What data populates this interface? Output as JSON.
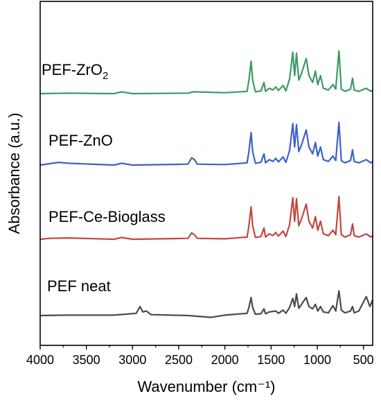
{
  "chart_data": {
    "type": "line",
    "xlabel": "Wavenumber (cm⁻¹)",
    "ylabel": "Absorbance (a.u.)",
    "xlim": [
      4000,
      400
    ],
    "x_reversed": true,
    "x_ticks": [
      "4000",
      "3500",
      "3000",
      "2500",
      "2000",
      "1500",
      "1000",
      "500"
    ],
    "y_ticks_shown": false,
    "grid": false,
    "series": [
      {
        "name": "PEF-ZrO2",
        "label_main": "PEF-ZrO",
        "label_sub": "2",
        "color": "#3a9a63",
        "offset": 3,
        "points": [
          [
            4000,
            0.0
          ],
          [
            3700,
            0.01
          ],
          [
            3200,
            0.0
          ],
          [
            3120,
            0.04
          ],
          [
            3000,
            0.0
          ],
          [
            2400,
            0.01
          ],
          [
            2340,
            0.04
          ],
          [
            2000,
            0.02
          ],
          [
            1760,
            0.05
          ],
          [
            1740,
            0.3
          ],
          [
            1716,
            0.72
          ],
          [
            1700,
            0.3
          ],
          [
            1670,
            0.04
          ],
          [
            1610,
            0.06
          ],
          [
            1577,
            0.25
          ],
          [
            1560,
            0.05
          ],
          [
            1520,
            0.12
          ],
          [
            1480,
            0.08
          ],
          [
            1450,
            0.15
          ],
          [
            1420,
            0.07
          ],
          [
            1370,
            0.18
          ],
          [
            1340,
            0.06
          ],
          [
            1300,
            0.32
          ],
          [
            1265,
            0.92
          ],
          [
            1245,
            0.4
          ],
          [
            1225,
            0.9
          ],
          [
            1200,
            0.3
          ],
          [
            1170,
            0.45
          ],
          [
            1120,
            0.78
          ],
          [
            1090,
            0.4
          ],
          [
            1050,
            0.25
          ],
          [
            1020,
            0.5
          ],
          [
            995,
            0.2
          ],
          [
            965,
            0.4
          ],
          [
            935,
            0.12
          ],
          [
            880,
            0.08
          ],
          [
            830,
            0.2
          ],
          [
            800,
            0.1
          ],
          [
            765,
            0.95
          ],
          [
            740,
            0.1
          ],
          [
            700,
            0.05
          ],
          [
            640,
            0.1
          ],
          [
            618,
            0.34
          ],
          [
            600,
            0.08
          ],
          [
            550,
            0.05
          ],
          [
            470,
            0.12
          ],
          [
            420,
            0.05
          ],
          [
            400,
            0.08
          ]
        ]
      },
      {
        "name": "PEF-ZnO",
        "label_main": "PEF-ZnO",
        "label_sub": "",
        "color": "#3b5fcd",
        "offset": 2,
        "points": [
          [
            4000,
            0.0
          ],
          [
            3900,
            0.03
          ],
          [
            3800,
            0.06
          ],
          [
            3700,
            0.04
          ],
          [
            3200,
            0.0
          ],
          [
            3120,
            0.04
          ],
          [
            3000,
            0.0
          ],
          [
            2400,
            0.02
          ],
          [
            2360,
            0.16
          ],
          [
            2330,
            0.12
          ],
          [
            2300,
            0.02
          ],
          [
            2000,
            0.01
          ],
          [
            1760,
            0.05
          ],
          [
            1740,
            0.3
          ],
          [
            1716,
            0.72
          ],
          [
            1700,
            0.3
          ],
          [
            1670,
            0.04
          ],
          [
            1610,
            0.06
          ],
          [
            1577,
            0.25
          ],
          [
            1560,
            0.05
          ],
          [
            1520,
            0.12
          ],
          [
            1480,
            0.08
          ],
          [
            1450,
            0.15
          ],
          [
            1420,
            0.07
          ],
          [
            1370,
            0.18
          ],
          [
            1340,
            0.06
          ],
          [
            1300,
            0.32
          ],
          [
            1265,
            0.92
          ],
          [
            1245,
            0.4
          ],
          [
            1225,
            0.9
          ],
          [
            1200,
            0.3
          ],
          [
            1170,
            0.45
          ],
          [
            1120,
            0.78
          ],
          [
            1090,
            0.4
          ],
          [
            1050,
            0.25
          ],
          [
            1020,
            0.5
          ],
          [
            995,
            0.2
          ],
          [
            965,
            0.4
          ],
          [
            935,
            0.12
          ],
          [
            880,
            0.08
          ],
          [
            830,
            0.2
          ],
          [
            800,
            0.1
          ],
          [
            765,
            0.95
          ],
          [
            740,
            0.1
          ],
          [
            700,
            0.05
          ],
          [
            640,
            0.1
          ],
          [
            618,
            0.34
          ],
          [
            600,
            0.08
          ],
          [
            550,
            0.05
          ],
          [
            470,
            0.12
          ],
          [
            420,
            0.05
          ],
          [
            400,
            0.08
          ]
        ]
      },
      {
        "name": "PEF-Ce-Bioglass",
        "label_main": "PEF-Ce-Bioglass",
        "label_sub": "",
        "color": "#c4453f",
        "offset": 1,
        "points": [
          [
            4000,
            0.0
          ],
          [
            3900,
            0.02
          ],
          [
            3700,
            0.03
          ],
          [
            3200,
            0.0
          ],
          [
            3120,
            0.04
          ],
          [
            3000,
            0.0
          ],
          [
            2400,
            0.02
          ],
          [
            2360,
            0.14
          ],
          [
            2330,
            0.1
          ],
          [
            2300,
            0.02
          ],
          [
            2000,
            0.01
          ],
          [
            1760,
            0.05
          ],
          [
            1740,
            0.3
          ],
          [
            1716,
            0.72
          ],
          [
            1700,
            0.3
          ],
          [
            1670,
            0.04
          ],
          [
            1610,
            0.06
          ],
          [
            1577,
            0.25
          ],
          [
            1560,
            0.05
          ],
          [
            1520,
            0.12
          ],
          [
            1480,
            0.08
          ],
          [
            1450,
            0.15
          ],
          [
            1420,
            0.07
          ],
          [
            1370,
            0.18
          ],
          [
            1340,
            0.06
          ],
          [
            1300,
            0.32
          ],
          [
            1265,
            0.92
          ],
          [
            1245,
            0.4
          ],
          [
            1225,
            0.9
          ],
          [
            1200,
            0.3
          ],
          [
            1170,
            0.45
          ],
          [
            1120,
            0.78
          ],
          [
            1090,
            0.4
          ],
          [
            1050,
            0.25
          ],
          [
            1020,
            0.5
          ],
          [
            995,
            0.2
          ],
          [
            965,
            0.4
          ],
          [
            935,
            0.12
          ],
          [
            880,
            0.08
          ],
          [
            830,
            0.2
          ],
          [
            800,
            0.1
          ],
          [
            765,
            0.95
          ],
          [
            740,
            0.1
          ],
          [
            700,
            0.05
          ],
          [
            640,
            0.1
          ],
          [
            618,
            0.34
          ],
          [
            600,
            0.08
          ],
          [
            550,
            0.05
          ],
          [
            470,
            0.12
          ],
          [
            420,
            0.05
          ],
          [
            400,
            0.08
          ]
        ]
      },
      {
        "name": "PEF neat",
        "label_main": "PEF neat",
        "label_sub": "",
        "color": "#4a4a4a",
        "offset": 0,
        "points": [
          [
            4000,
            0.0
          ],
          [
            3700,
            0.01
          ],
          [
            3200,
            0.01
          ],
          [
            2960,
            0.05
          ],
          [
            2920,
            0.2
          ],
          [
            2890,
            0.08
          ],
          [
            2850,
            0.1
          ],
          [
            2800,
            0.02
          ],
          [
            2400,
            0.0
          ],
          [
            2150,
            -0.04
          ],
          [
            2000,
            0.01
          ],
          [
            1760,
            0.05
          ],
          [
            1740,
            0.18
          ],
          [
            1716,
            0.4
          ],
          [
            1700,
            0.18
          ],
          [
            1670,
            0.03
          ],
          [
            1610,
            0.04
          ],
          [
            1577,
            0.15
          ],
          [
            1560,
            0.04
          ],
          [
            1520,
            0.08
          ],
          [
            1450,
            0.1
          ],
          [
            1420,
            0.05
          ],
          [
            1370,
            0.12
          ],
          [
            1340,
            0.05
          ],
          [
            1300,
            0.18
          ],
          [
            1265,
            0.38
          ],
          [
            1245,
            0.2
          ],
          [
            1225,
            0.48
          ],
          [
            1200,
            0.16
          ],
          [
            1170,
            0.25
          ],
          [
            1120,
            0.4
          ],
          [
            1090,
            0.2
          ],
          [
            1050,
            0.15
          ],
          [
            1020,
            0.25
          ],
          [
            995,
            0.1
          ],
          [
            965,
            0.2
          ],
          [
            935,
            0.08
          ],
          [
            880,
            0.06
          ],
          [
            830,
            0.22
          ],
          [
            800,
            0.1
          ],
          [
            765,
            0.55
          ],
          [
            740,
            0.12
          ],
          [
            700,
            0.06
          ],
          [
            640,
            0.1
          ],
          [
            618,
            0.2
          ],
          [
            600,
            0.06
          ],
          [
            550,
            0.1
          ],
          [
            470,
            0.42
          ],
          [
            430,
            0.2
          ],
          [
            400,
            0.35
          ]
        ]
      }
    ]
  }
}
